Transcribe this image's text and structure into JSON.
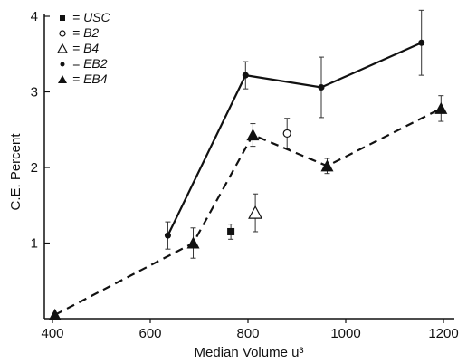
{
  "chart_data": {
    "type": "line",
    "title": "",
    "xlabel": "Median Volume u³",
    "ylabel": "C.E. Percent",
    "xlim": [
      400,
      1200
    ],
    "ylim": [
      0,
      4
    ],
    "x_ticks": [
      400,
      600,
      800,
      1000,
      1200
    ],
    "y_ticks": [
      1,
      2,
      3,
      4
    ],
    "grid": false,
    "legend_position": "top-left",
    "legend": [
      {
        "label": "= USC",
        "marker": "square-filled"
      },
      {
        "label": "= B2",
        "marker": "circle-open"
      },
      {
        "label": "= B4",
        "marker": "triangle-open"
      },
      {
        "label": "= EB2",
        "marker": "circle-filled"
      },
      {
        "label": "= EB4",
        "marker": "triangle-filled"
      }
    ],
    "series": [
      {
        "name": "USC",
        "marker": "square-filled",
        "line": "none",
        "x": [
          765
        ],
        "y": [
          1.15
        ],
        "err": [
          0.1
        ]
      },
      {
        "name": "B2",
        "marker": "circle-open",
        "line": "none",
        "x": [
          880
        ],
        "y": [
          2.45
        ],
        "err": [
          0.2
        ]
      },
      {
        "name": "B4",
        "marker": "triangle-open",
        "line": "none",
        "x": [
          815
        ],
        "y": [
          1.4
        ],
        "err": [
          0.25
        ]
      },
      {
        "name": "EB2",
        "marker": "circle-filled",
        "line": "solid",
        "x": [
          636,
          795,
          950,
          1155
        ],
        "y": [
          1.1,
          3.22,
          3.06,
          3.65
        ],
        "err": [
          0.18,
          0.18,
          0.4,
          0.43
        ]
      },
      {
        "name": "EB4",
        "marker": "triangle-filled",
        "line": "dashed",
        "x": [
          405,
          688,
          810,
          962,
          1195
        ],
        "y": [
          0.05,
          1.0,
          2.43,
          2.02,
          2.78
        ],
        "err": [
          0.0,
          0.2,
          0.15,
          0.1,
          0.17
        ]
      }
    ]
  }
}
